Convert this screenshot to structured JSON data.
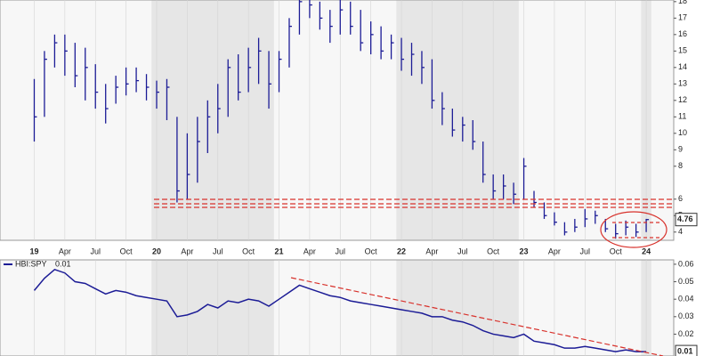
{
  "chart_data": [
    {
      "type": "hlc",
      "categories": [
        "19",
        null,
        null,
        "Apr",
        null,
        null,
        "Jul",
        null,
        null,
        "Oct",
        null,
        null,
        "20",
        null,
        null,
        "Apr",
        null,
        null,
        "Jul",
        null,
        null,
        "Oct",
        null,
        null,
        "21",
        null,
        null,
        "Apr",
        null,
        null,
        "Jul",
        null,
        null,
        "Oct",
        null,
        null,
        "22",
        null,
        null,
        "Apr",
        null,
        null,
        "Jul",
        null,
        null,
        "Oct",
        null,
        null,
        "23",
        null,
        null,
        "Apr",
        null,
        null,
        "Jul",
        null,
        null,
        "Oct",
        null,
        null,
        "24"
      ],
      "values": [
        11,
        14.5,
        15.5,
        15,
        13.5,
        14,
        12.5,
        11.5,
        12.8,
        13,
        13.2,
        12.8,
        12.5,
        12.8,
        6.5,
        7.5,
        9.5,
        11,
        11.5,
        14,
        12.5,
        14,
        15,
        13,
        14.5,
        16.5,
        18,
        17.8,
        17,
        16.5,
        17.5,
        16.5,
        15.5,
        16,
        15,
        15.5,
        14.5,
        14.8,
        14,
        12,
        11.5,
        10.2,
        10.5,
        9.5,
        7.5,
        6.5,
        6.8,
        6.3,
        8,
        5.8,
        5,
        4.6,
        4,
        4.3,
        4.8,
        5,
        4.2,
        3.9,
        4.3,
        4,
        4.76
      ],
      "high": [
        13.3,
        15,
        16,
        16,
        15.5,
        15.2,
        14.2,
        13,
        13.5,
        14,
        14,
        13.6,
        13.2,
        13.3,
        11,
        10,
        11,
        12,
        13,
        14.5,
        14.8,
        15.2,
        15.8,
        15,
        15,
        17,
        18.5,
        18.5,
        18,
        17.5,
        18.3,
        18,
        17.5,
        16.8,
        16.5,
        16,
        15.8,
        15.5,
        15,
        14.5,
        12.5,
        11.5,
        11,
        10.8,
        9.5,
        7.5,
        7.5,
        7,
        8.5,
        6.5,
        5.8,
        5.2,
        4.6,
        4.8,
        5.4,
        5.3,
        4.8,
        4.5,
        4.7,
        4.5,
        4.8
      ],
      "low": [
        9.5,
        11,
        14,
        13.5,
        12.8,
        12,
        11.5,
        10.6,
        11.8,
        12.3,
        12.5,
        12,
        11.5,
        10.8,
        5.8,
        6,
        7,
        8.8,
        10,
        11,
        12,
        12.5,
        13,
        11.5,
        12.5,
        14,
        16,
        17,
        16.3,
        15.5,
        16,
        16,
        15,
        14.8,
        14.5,
        14.5,
        13.8,
        13.5,
        13,
        11.5,
        10.5,
        9.8,
        9.5,
        9,
        7,
        6,
        6,
        5.7,
        6,
        5.5,
        4.8,
        4.4,
        3.8,
        4,
        4.3,
        4.5,
        4,
        3.6,
        3.8,
        3.7,
        4
      ],
      "color": "#1c1c96",
      "ylim": [
        3.5,
        18.1
      ],
      "yticks": [
        4,
        5,
        6,
        8,
        9,
        10,
        11,
        12,
        13,
        14,
        15,
        16,
        17,
        18
      ]
    },
    {
      "type": "line",
      "series": [
        {
          "name": "HBI:SPY",
          "color": "#1c1c96",
          "values": [
            0.045,
            0.052,
            0.057,
            0.055,
            0.05,
            0.049,
            0.046,
            0.043,
            0.045,
            0.044,
            0.042,
            0.041,
            0.04,
            0.039,
            0.03,
            0.031,
            0.033,
            0.037,
            0.035,
            0.039,
            0.038,
            0.04,
            0.039,
            0.036,
            0.04,
            0.044,
            0.048,
            0.046,
            0.044,
            0.042,
            0.041,
            0.039,
            0.038,
            0.037,
            0.036,
            0.035,
            0.034,
            0.033,
            0.032,
            0.03,
            0.03,
            0.028,
            0.027,
            0.025,
            0.022,
            0.02,
            0.019,
            0.018,
            0.02,
            0.016,
            0.015,
            0.014,
            0.012,
            0.012,
            0.013,
            0.012,
            0.011,
            0.01,
            0.011,
            0.01,
            0.01
          ]
        }
      ],
      "ylim": [
        0.0075,
        0.0625
      ],
      "yticks": [
        0.02,
        0.03,
        0.04,
        0.05,
        0.06
      ]
    }
  ]
}
